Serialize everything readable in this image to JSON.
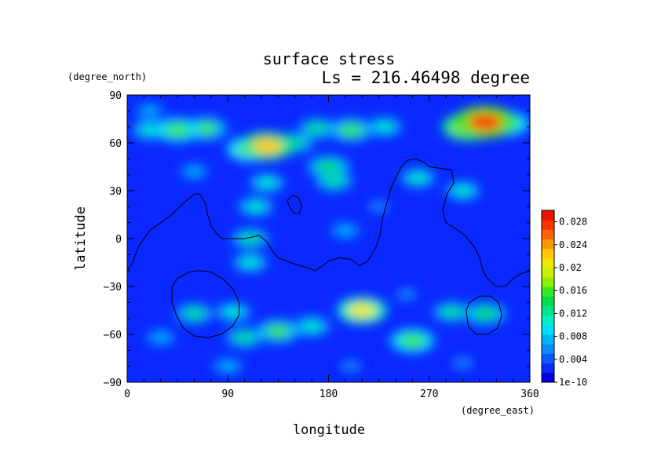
{
  "chart_data": {
    "type": "heatmap",
    "title": "surface stress",
    "subtitle": "Ls = 216.46498 degree",
    "xlabel": "longitude",
    "ylabel": "latitude",
    "x_unit": "(degree_east)",
    "y_unit": "(degree_north)",
    "xlim": [
      0,
      360
    ],
    "ylim": [
      -90,
      90
    ],
    "x_ticks": [
      "0",
      "90",
      "180",
      "270",
      "360"
    ],
    "y_ticks": [
      "90",
      "60",
      "30",
      "0",
      "−30",
      "−60",
      "−90"
    ],
    "colorbar": {
      "labels": [
        "1e-10",
        "0.004",
        "0.008",
        "0.012",
        "0.016",
        "0.02",
        "0.024",
        "0.028"
      ],
      "values": [
        0,
        0.004,
        0.008,
        0.012,
        0.016,
        0.02,
        0.024,
        0.028
      ],
      "max": 0.03,
      "colors": [
        "#0000e0",
        "#0a28ff",
        "#0a5aff",
        "#0a8cff",
        "#00b4ff",
        "#00dcff",
        "#00f0c8",
        "#00e68c",
        "#00dc50",
        "#3ce628",
        "#8cf000",
        "#c8f000",
        "#f0e600",
        "#ffc800",
        "#ff9600",
        "#ff6400",
        "#ff3200",
        "#e61400"
      ]
    },
    "hotspots": [
      {
        "lon": 320,
        "lat": 73,
        "value": 0.028
      },
      {
        "lon": 305,
        "lat": 70,
        "value": 0.022
      },
      {
        "lon": 340,
        "lat": 72,
        "value": 0.016
      },
      {
        "lon": 125,
        "lat": 58,
        "value": 0.022
      },
      {
        "lon": 110,
        "lat": 56,
        "value": 0.018
      },
      {
        "lon": 150,
        "lat": 60,
        "value": 0.012
      },
      {
        "lon": 45,
        "lat": 68,
        "value": 0.016
      },
      {
        "lon": 70,
        "lat": 69,
        "value": 0.015
      },
      {
        "lon": 20,
        "lat": 68,
        "value": 0.01
      },
      {
        "lon": 170,
        "lat": 69,
        "value": 0.012
      },
      {
        "lon": 200,
        "lat": 68,
        "value": 0.015
      },
      {
        "lon": 230,
        "lat": 70,
        "value": 0.01
      },
      {
        "lon": 180,
        "lat": 45,
        "value": 0.014
      },
      {
        "lon": 185,
        "lat": 36,
        "value": 0.012
      },
      {
        "lon": 210,
        "lat": -45,
        "value": 0.02
      },
      {
        "lon": 135,
        "lat": -58,
        "value": 0.015
      },
      {
        "lon": 255,
        "lat": -64,
        "value": 0.016
      },
      {
        "lon": 105,
        "lat": -62,
        "value": 0.012
      },
      {
        "lon": 320,
        "lat": -47,
        "value": 0.014
      },
      {
        "lon": 290,
        "lat": -46,
        "value": 0.012
      },
      {
        "lon": 60,
        "lat": -47,
        "value": 0.012
      },
      {
        "lon": 95,
        "lat": -46,
        "value": 0.01
      },
      {
        "lon": 165,
        "lat": -55,
        "value": 0.011
      },
      {
        "lon": 30,
        "lat": -62,
        "value": 0.008
      },
      {
        "lon": 110,
        "lat": 0,
        "value": 0.012
      },
      {
        "lon": 110,
        "lat": -15,
        "value": 0.01
      },
      {
        "lon": 115,
        "lat": 20,
        "value": 0.01
      },
      {
        "lon": 125,
        "lat": 35,
        "value": 0.01
      },
      {
        "lon": 260,
        "lat": 38,
        "value": 0.01
      },
      {
        "lon": 300,
        "lat": 30,
        "value": 0.01
      },
      {
        "lon": 195,
        "lat": 5,
        "value": 0.008
      },
      {
        "lon": 90,
        "lat": -80,
        "value": 0.008
      },
      {
        "lon": 300,
        "lat": -78,
        "value": 0.006
      },
      {
        "lon": 200,
        "lat": -80,
        "value": 0.006
      },
      {
        "lon": 60,
        "lat": 42,
        "value": 0.007
      },
      {
        "lon": 225,
        "lat": 20,
        "value": 0.006
      },
      {
        "lon": 20,
        "lat": 80,
        "value": 0.007
      },
      {
        "lon": 250,
        "lat": -35,
        "value": 0.006
      }
    ],
    "background_value": 0.002,
    "contours": [
      {
        "name": "continent-outline-1",
        "points": [
          [
            0,
            -20
          ],
          [
            5,
            -15
          ],
          [
            10,
            -5
          ],
          [
            20,
            5
          ],
          [
            30,
            10
          ],
          [
            40,
            15
          ],
          [
            50,
            22
          ],
          [
            55,
            25
          ],
          [
            60,
            28
          ],
          [
            65,
            28
          ],
          [
            70,
            22
          ],
          [
            72,
            15
          ],
          [
            75,
            8
          ],
          [
            80,
            3
          ],
          [
            85,
            0
          ],
          [
            95,
            0
          ],
          [
            105,
            0
          ],
          [
            112,
            1
          ],
          [
            118,
            2
          ],
          [
            125,
            -2
          ],
          [
            130,
            -8
          ],
          [
            135,
            -12
          ],
          [
            142,
            -14
          ],
          [
            150,
            -16
          ],
          [
            160,
            -18
          ],
          [
            168,
            -20
          ],
          [
            175,
            -17
          ],
          [
            180,
            -14
          ],
          [
            190,
            -12
          ],
          [
            200,
            -13
          ],
          [
            208,
            -17
          ],
          [
            215,
            -14
          ],
          [
            222,
            -6
          ],
          [
            226,
            2
          ],
          [
            228,
            12
          ],
          [
            232,
            22
          ],
          [
            236,
            32
          ],
          [
            240,
            38
          ],
          [
            245,
            45
          ],
          [
            250,
            49
          ],
          [
            258,
            50
          ],
          [
            265,
            48
          ],
          [
            270,
            45
          ],
          [
            280,
            44
          ],
          [
            290,
            43
          ],
          [
            292,
            35
          ],
          [
            286,
            28
          ],
          [
            282,
            18
          ],
          [
            285,
            10
          ],
          [
            294,
            6
          ],
          [
            302,
            2
          ],
          [
            310,
            -5
          ],
          [
            315,
            -12
          ],
          [
            318,
            -20
          ],
          [
            322,
            -25
          ],
          [
            330,
            -30
          ],
          [
            338,
            -30
          ],
          [
            345,
            -25
          ],
          [
            352,
            -22
          ],
          [
            360,
            -20
          ]
        ]
      },
      {
        "name": "crater-outline-1",
        "points": [
          [
            40,
            -30
          ],
          [
            45,
            -25
          ],
          [
            55,
            -21
          ],
          [
            65,
            -20
          ],
          [
            75,
            -21
          ],
          [
            85,
            -25
          ],
          [
            95,
            -32
          ],
          [
            100,
            -40
          ],
          [
            100,
            -48
          ],
          [
            94,
            -55
          ],
          [
            84,
            -60
          ],
          [
            72,
            -62
          ],
          [
            60,
            -61
          ],
          [
            50,
            -56
          ],
          [
            44,
            -48
          ],
          [
            40,
            -40
          ],
          [
            40,
            -30
          ]
        ]
      },
      {
        "name": "crater-outline-2",
        "points": [
          [
            303,
            -45
          ],
          [
            306,
            -40
          ],
          [
            315,
            -36
          ],
          [
            325,
            -36
          ],
          [
            332,
            -40
          ],
          [
            335,
            -48
          ],
          [
            331,
            -56
          ],
          [
            322,
            -60
          ],
          [
            312,
            -60
          ],
          [
            305,
            -55
          ],
          [
            303,
            -45
          ]
        ]
      },
      {
        "name": "island-outline",
        "points": [
          [
            143,
            24
          ],
          [
            148,
            27
          ],
          [
            153,
            26
          ],
          [
            156,
            20
          ],
          [
            154,
            16
          ],
          [
            149,
            16
          ],
          [
            145,
            20
          ],
          [
            143,
            24
          ]
        ]
      }
    ]
  }
}
